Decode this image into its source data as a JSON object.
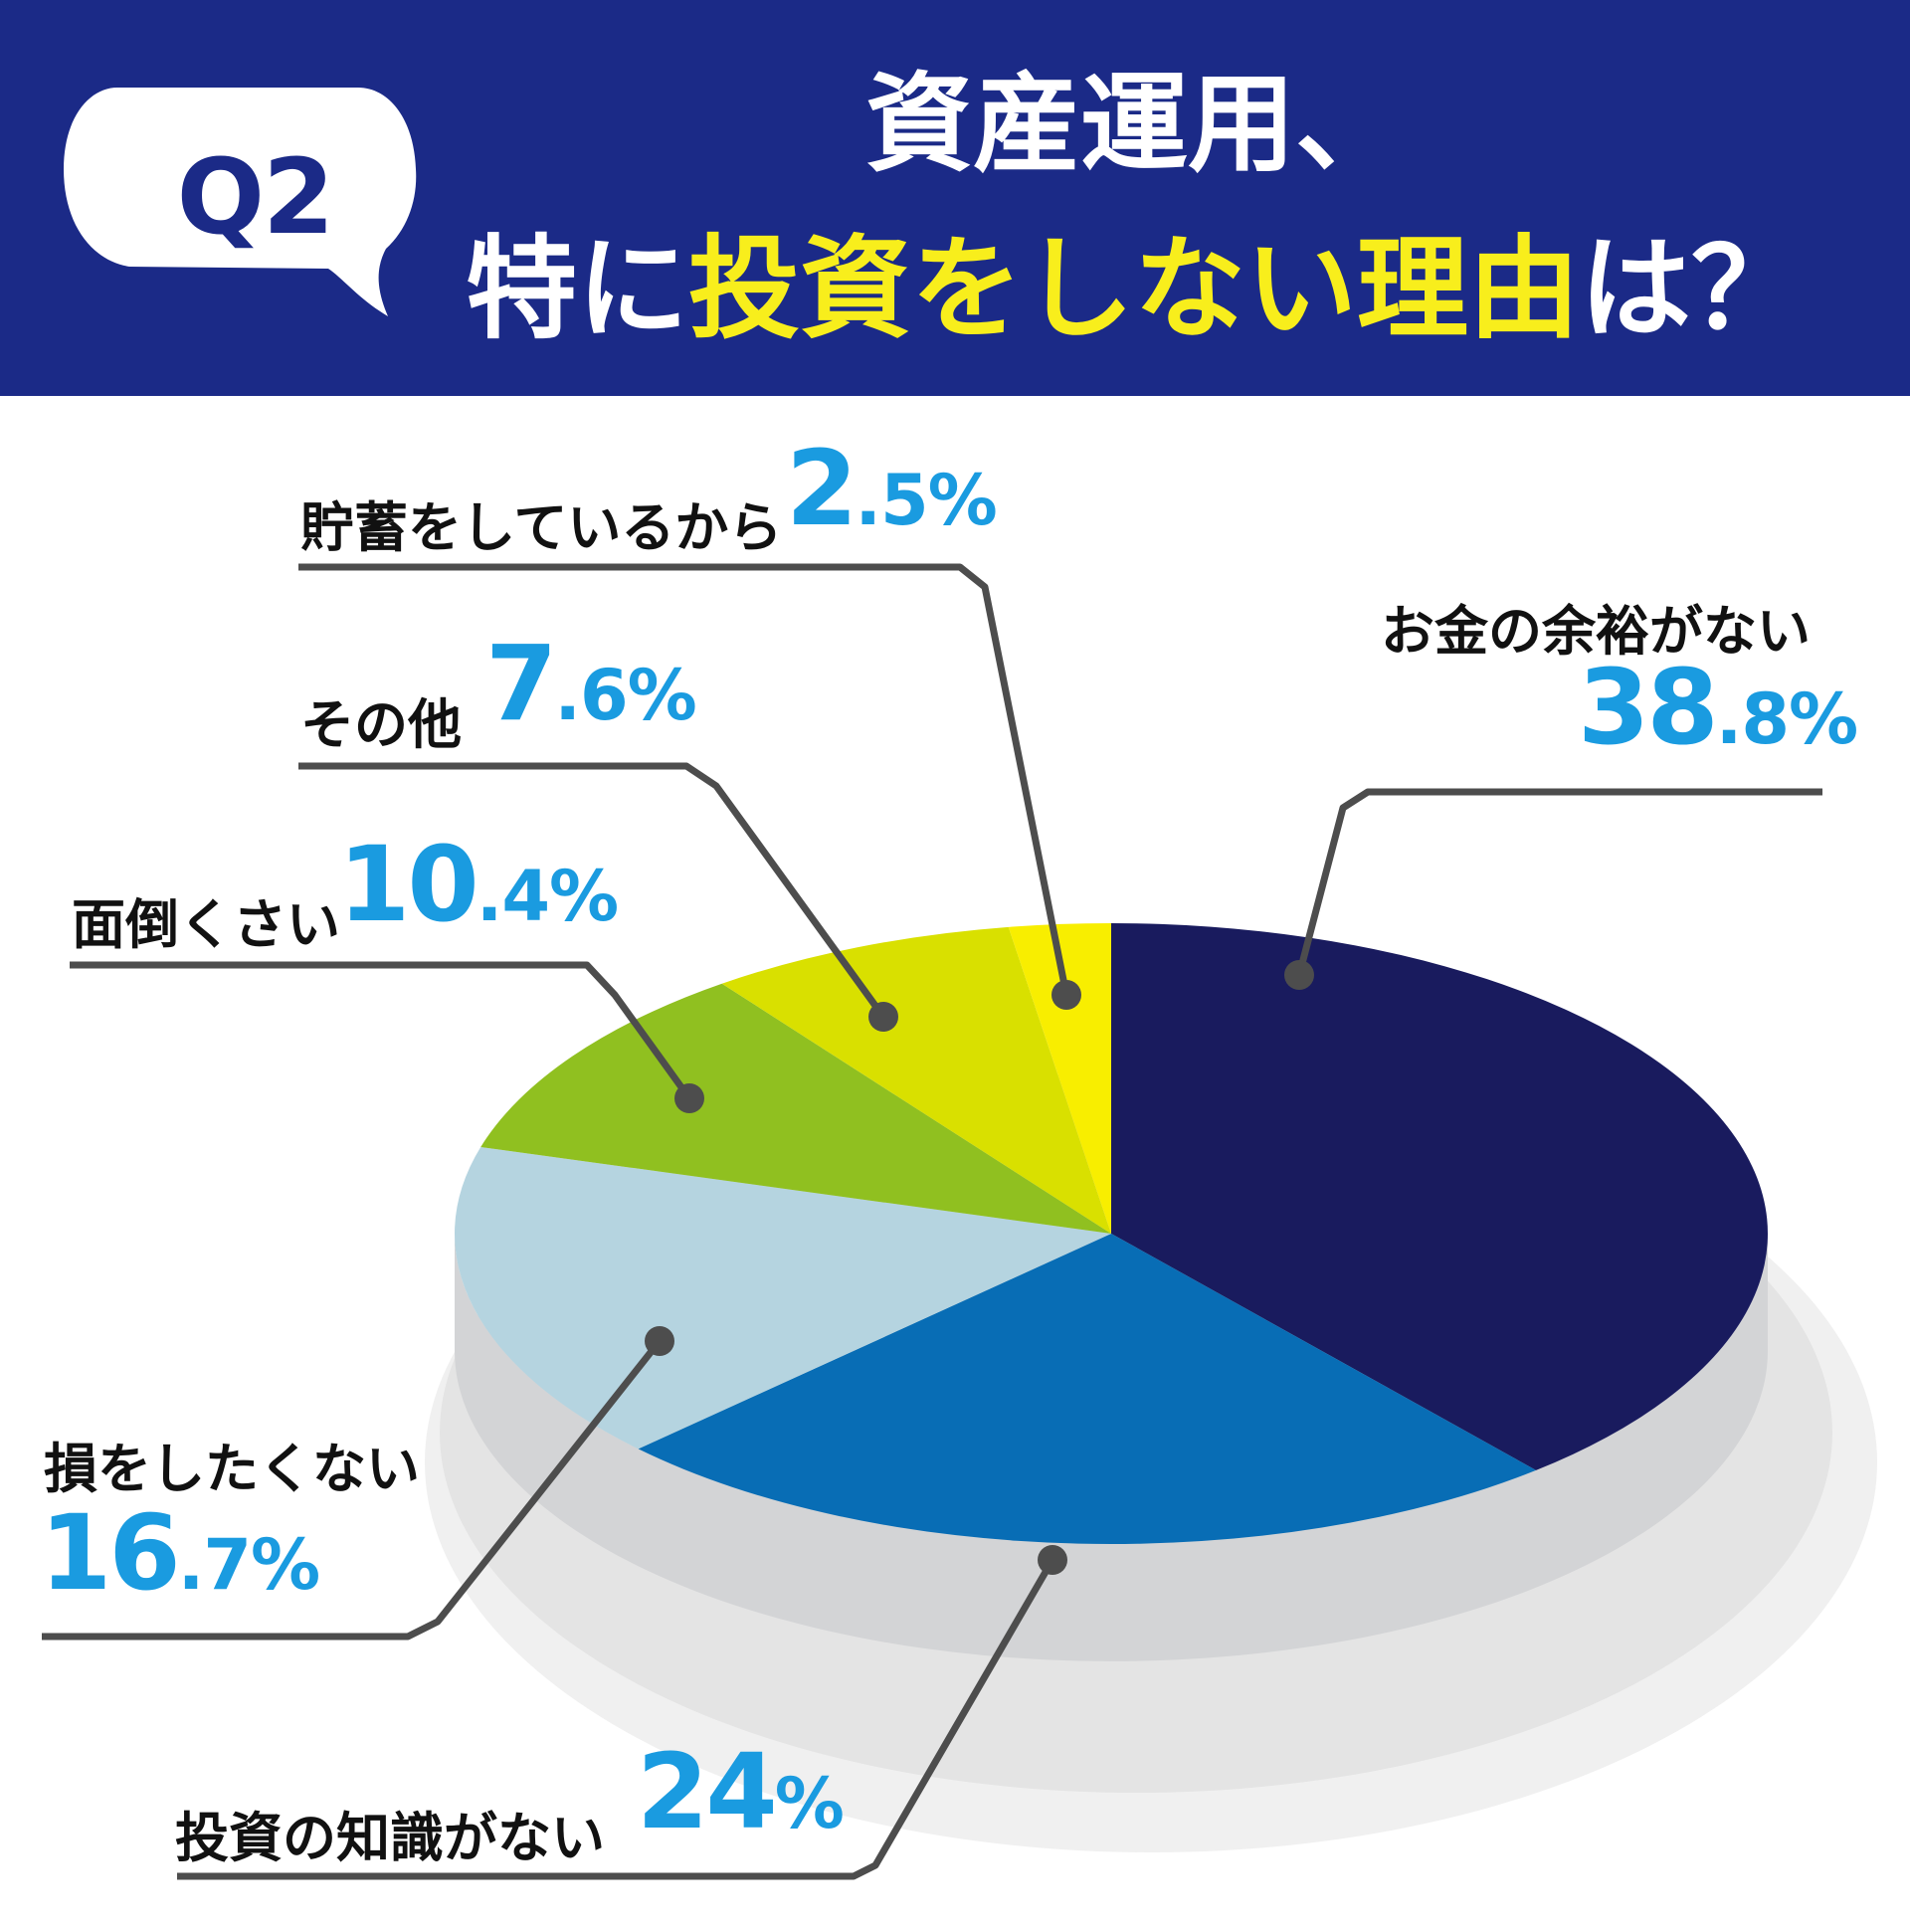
{
  "header": {
    "badge": "Q2",
    "title_line1": "資産運用、",
    "title_line2_part1": "特に",
    "title_line2_highlight": "投資をしない理由",
    "title_line2_part2": "は？",
    "background_color": "#1b2a87",
    "highlight_color": "#f8ee1c"
  },
  "chart_data": {
    "type": "pie",
    "style": "3d",
    "unit": "%",
    "slices": [
      {
        "label": "お金の余裕がない",
        "value": 38.8,
        "display_int": "38",
        "display_dec": ".8%",
        "color": "#191b5e"
      },
      {
        "label": "投資の知識がない",
        "value": 24,
        "display_int": "24",
        "display_dec": "%",
        "color": "#086db5"
      },
      {
        "label": "損をしたくない",
        "value": 16.7,
        "display_int": "16",
        "display_dec": ".7%",
        "color": "#b5d4e0"
      },
      {
        "label": "面倒くさい",
        "value": 10.4,
        "display_int": "10",
        "display_dec": ".4%",
        "color": "#90c020"
      },
      {
        "label": "その他",
        "value": 7.6,
        "display_int": "7",
        "display_dec": ".6%",
        "color": "#d9e000"
      },
      {
        "label": "貯蓄をしているから",
        "value": 2.5,
        "display_int": "2",
        "display_dec": ".5%",
        "color": "#f8ee00"
      }
    ]
  }
}
